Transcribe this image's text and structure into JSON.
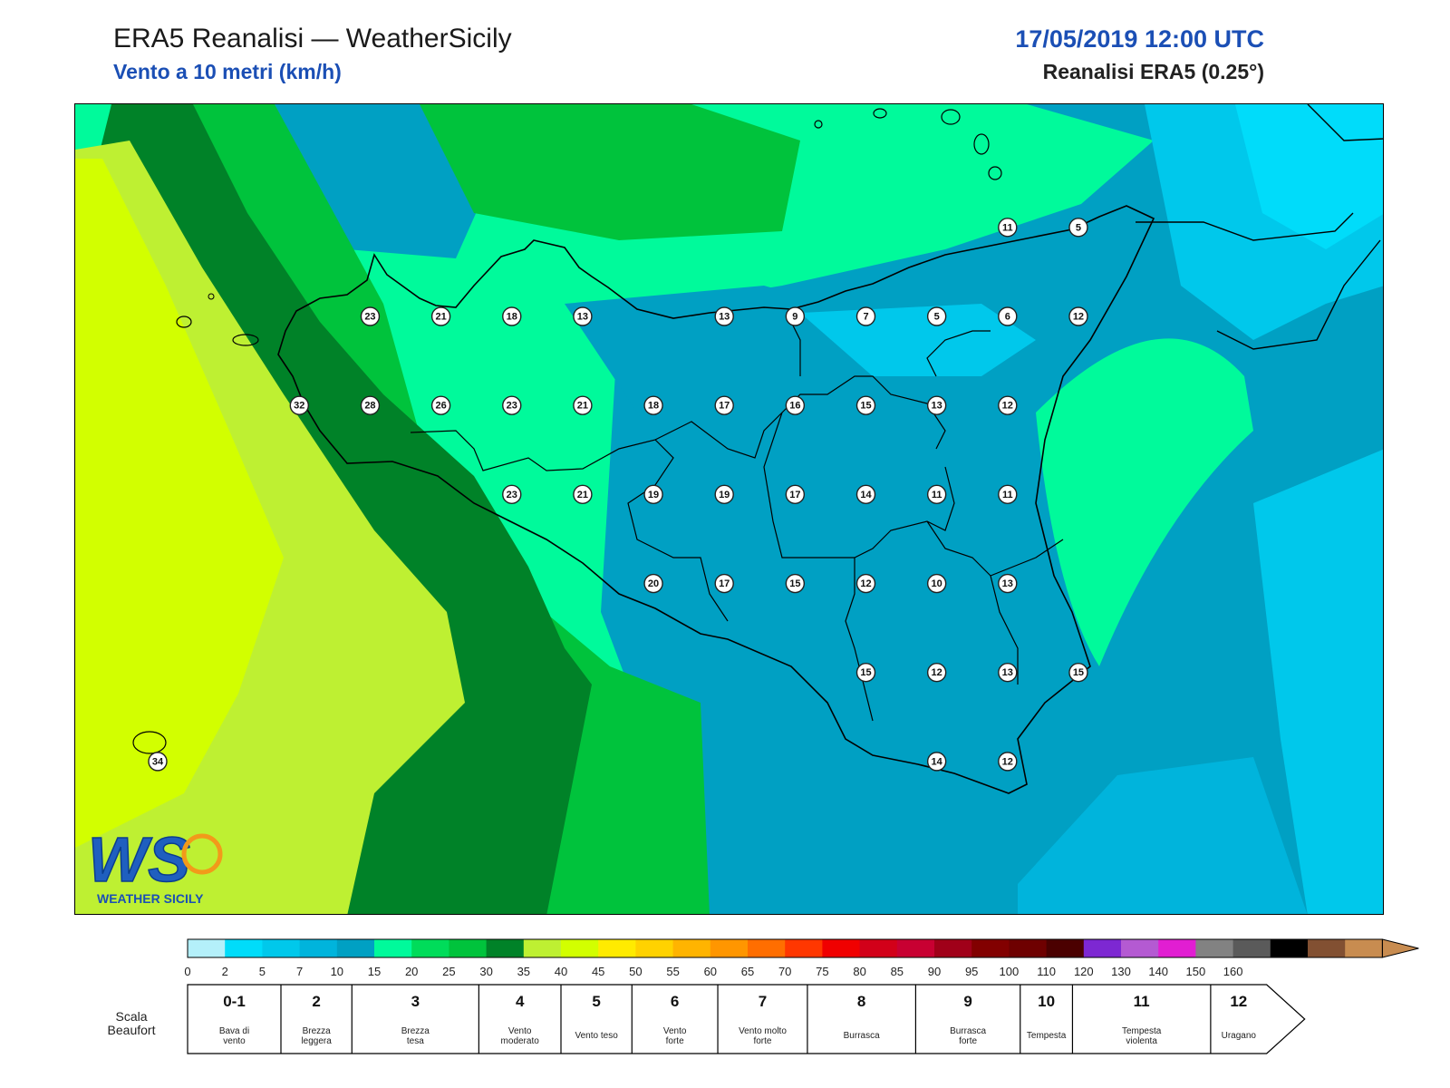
{
  "header": {
    "title": "ERA5 Reanalisi — WeatherSicily",
    "subtitle": "Vento a 10 metri (km/h)",
    "datetime": "17/05/2019 12:00 UTC",
    "model": "Reanalisi ERA5 (0.25°)"
  },
  "stations": [
    {
      "label": "11",
      "lon": 15.2,
      "lat": 38.55
    },
    {
      "label": "5",
      "lon": 15.5,
      "lat": 38.55
    },
    {
      "label": "23",
      "lon": 12.5,
      "lat": 38.2
    },
    {
      "label": "21",
      "lon": 12.8,
      "lat": 38.2
    },
    {
      "label": "18",
      "lon": 13.1,
      "lat": 38.2
    },
    {
      "label": "13",
      "lon": 13.4,
      "lat": 38.2
    },
    {
      "label": "13",
      "lon": 14.0,
      "lat": 38.2
    },
    {
      "label": "9",
      "lon": 14.3,
      "lat": 38.2
    },
    {
      "label": "7",
      "lon": 14.6,
      "lat": 38.2
    },
    {
      "label": "5",
      "lon": 14.9,
      "lat": 38.2
    },
    {
      "label": "6",
      "lon": 15.2,
      "lat": 38.2
    },
    {
      "label": "12",
      "lon": 15.5,
      "lat": 38.2
    },
    {
      "label": "32",
      "lon": 12.2,
      "lat": 37.85
    },
    {
      "label": "28",
      "lon": 12.5,
      "lat": 37.85
    },
    {
      "label": "26",
      "lon": 12.8,
      "lat": 37.85
    },
    {
      "label": "23",
      "lon": 13.1,
      "lat": 37.85
    },
    {
      "label": "21",
      "lon": 13.4,
      "lat": 37.85
    },
    {
      "label": "18",
      "lon": 13.7,
      "lat": 37.85
    },
    {
      "label": "17",
      "lon": 14.0,
      "lat": 37.85
    },
    {
      "label": "16",
      "lon": 14.3,
      "lat": 37.85
    },
    {
      "label": "15",
      "lon": 14.6,
      "lat": 37.85
    },
    {
      "label": "13",
      "lon": 14.9,
      "lat": 37.85
    },
    {
      "label": "12",
      "lon": 15.2,
      "lat": 37.85
    },
    {
      "label": "23",
      "lon": 13.1,
      "lat": 37.5
    },
    {
      "label": "21",
      "lon": 13.4,
      "lat": 37.5
    },
    {
      "label": "19",
      "lon": 13.7,
      "lat": 37.5
    },
    {
      "label": "19",
      "lon": 14.0,
      "lat": 37.5
    },
    {
      "label": "17",
      "lon": 14.3,
      "lat": 37.5
    },
    {
      "label": "14",
      "lon": 14.6,
      "lat": 37.5
    },
    {
      "label": "11",
      "lon": 14.9,
      "lat": 37.5
    },
    {
      "label": "11",
      "lon": 15.2,
      "lat": 37.5
    },
    {
      "label": "20",
      "lon": 13.7,
      "lat": 37.15
    },
    {
      "label": "17",
      "lon": 14.0,
      "lat": 37.15
    },
    {
      "label": "15",
      "lon": 14.3,
      "lat": 37.15
    },
    {
      "label": "12",
      "lon": 14.6,
      "lat": 37.15
    },
    {
      "label": "10",
      "lon": 14.9,
      "lat": 37.15
    },
    {
      "label": "13",
      "lon": 15.2,
      "lat": 37.15
    },
    {
      "label": "15",
      "lon": 14.6,
      "lat": 36.8
    },
    {
      "label": "12",
      "lon": 14.9,
      "lat": 36.8
    },
    {
      "label": "13",
      "lon": 15.2,
      "lat": 36.8
    },
    {
      "label": "15",
      "lon": 15.5,
      "lat": 36.8
    },
    {
      "label": "14",
      "lon": 14.9,
      "lat": 36.45
    },
    {
      "label": "12",
      "lon": 15.2,
      "lat": 36.45
    },
    {
      "label": "34",
      "lon": 11.6,
      "lat": 36.45
    }
  ],
  "logo": {
    "mark": "WS",
    "text": "WEATHER SICILY"
  },
  "colorbar": {
    "colors": [
      "#b4f0fa",
      "#00dcfa",
      "#00c8eb",
      "#00b4dc",
      "#00a0c3",
      "#00fa9b",
      "#00dc5a",
      "#00c33c",
      "#008228",
      "#bef032",
      "#d2ff00",
      "#ffeb00",
      "#ffd200",
      "#ffb400",
      "#ff9600",
      "#ff6e00",
      "#ff3700",
      "#f00000",
      "#d20019",
      "#c80032",
      "#a00019",
      "#820000",
      "#6e0000",
      "#4b0000",
      "#7d28d2",
      "#b45ad2",
      "#e11ed2",
      "#828282",
      "#5a5a5a",
      "#000000",
      "#825032",
      "#c88c50"
    ],
    "ticks": [
      "0",
      "2",
      "5",
      "7",
      "10",
      "15",
      "20",
      "25",
      "30",
      "35",
      "40",
      "45",
      "50",
      "55",
      "60",
      "65",
      "70",
      "75",
      "80",
      "85",
      "90",
      "95",
      "100",
      "110",
      "120",
      "130",
      "140",
      "150",
      "160"
    ]
  },
  "beaufort": {
    "label_line1": "Scala",
    "label_line2": "Beaufort",
    "cells": [
      {
        "num": "0-1",
        "desc1": "Bava di",
        "desc2": "vento"
      },
      {
        "num": "2",
        "desc1": "Brezza",
        "desc2": "leggera"
      },
      {
        "num": "3",
        "desc1": "Brezza",
        "desc2": "tesa"
      },
      {
        "num": "4",
        "desc1": "Vento",
        "desc2": "moderato"
      },
      {
        "num": "5",
        "desc1": "Vento teso",
        "desc2": ""
      },
      {
        "num": "6",
        "desc1": "Vento",
        "desc2": "forte"
      },
      {
        "num": "7",
        "desc1": "Vento molto",
        "desc2": "forte"
      },
      {
        "num": "8",
        "desc1": "Burrasca",
        "desc2": ""
      },
      {
        "num": "9",
        "desc1": "Burrasca",
        "desc2": "forte"
      },
      {
        "num": "10",
        "desc1": "Tempesta",
        "desc2": ""
      },
      {
        "num": "11",
        "desc1": "Tempesta",
        "desc2": "violenta"
      },
      {
        "num": "12",
        "desc1": "Uragano",
        "desc2": ""
      }
    ]
  }
}
